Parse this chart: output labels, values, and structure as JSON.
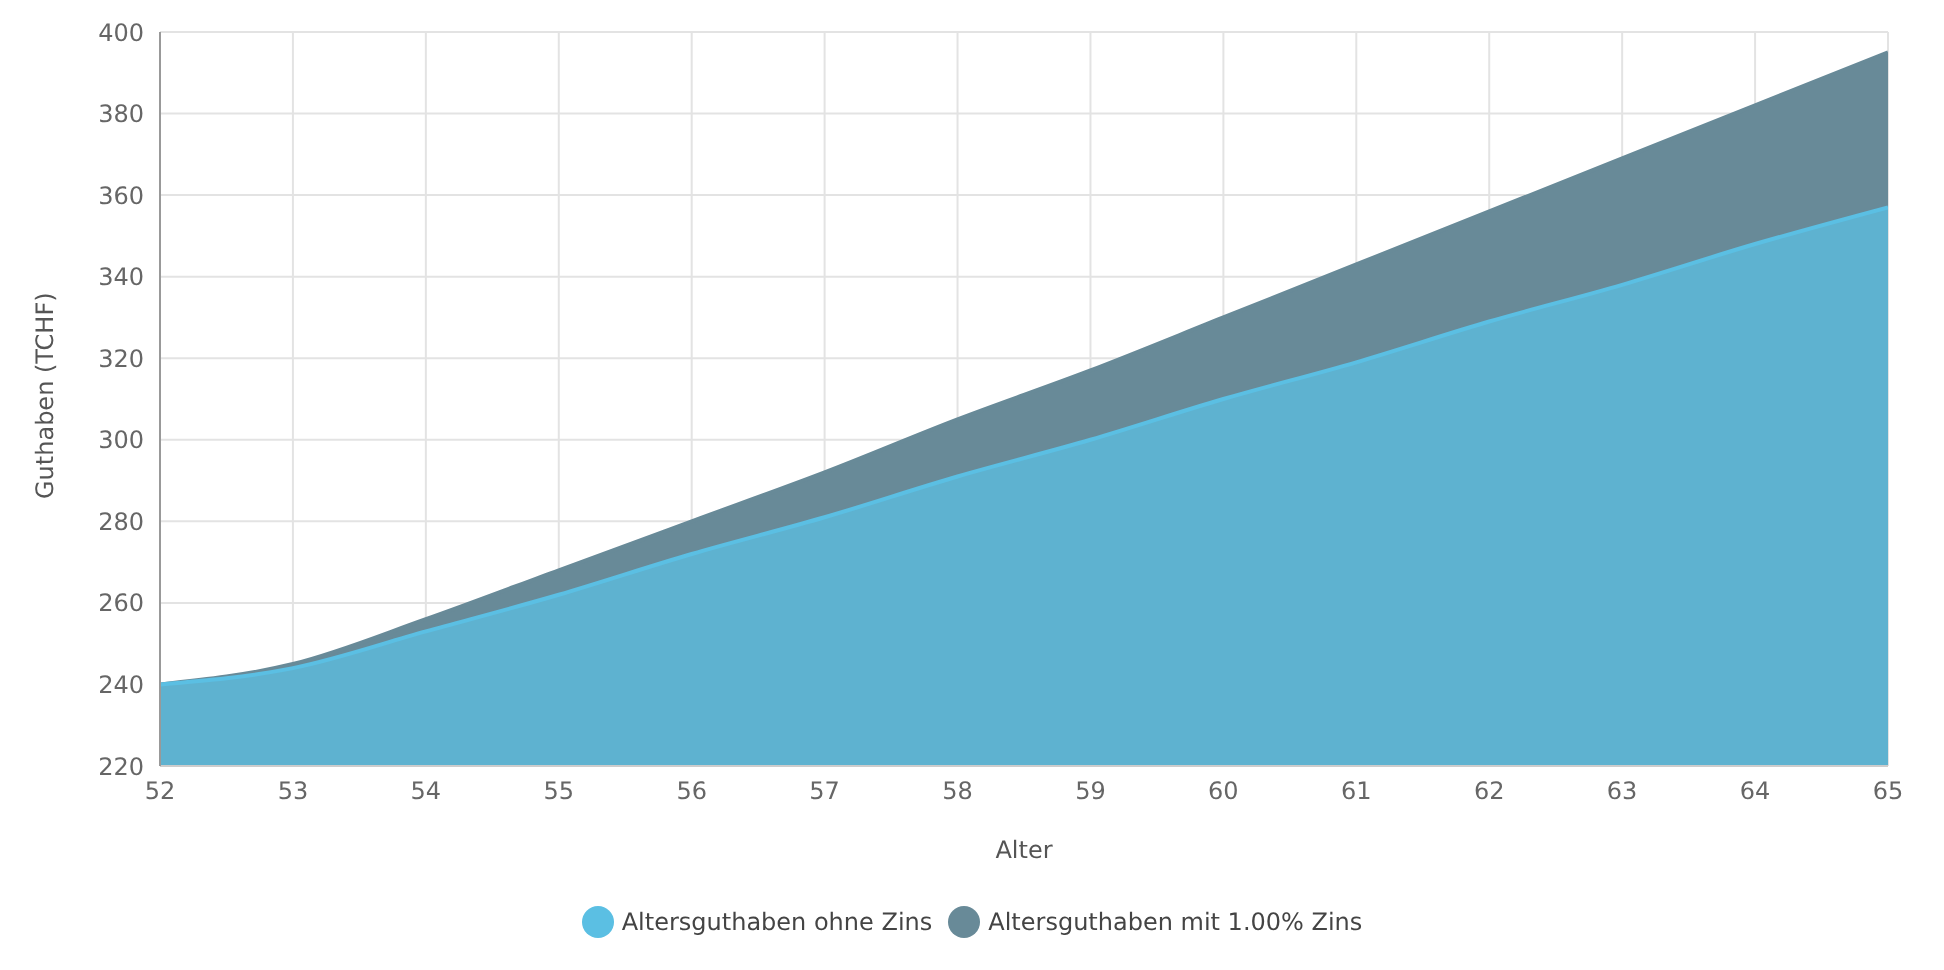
{
  "chart_data": {
    "type": "area",
    "xlabel": "Alter",
    "ylabel": "Guthaben (TCHF)",
    "x": [
      52,
      53,
      54,
      55,
      56,
      57,
      58,
      59,
      60,
      61,
      62,
      63,
      64,
      65
    ],
    "series": [
      {
        "name": "Altersguthaben ohne Zins",
        "color": "#5bbfe3",
        "values": [
          240,
          244,
          253,
          262,
          272,
          281,
          291,
          300,
          310,
          319,
          329,
          338,
          348,
          357
        ]
      },
      {
        "name": "Altersguthaben mit 1.00% Zins",
        "color": "#688a98",
        "values": [
          240,
          245,
          256,
          268,
          280,
          292,
          305,
          317,
          330,
          343,
          356,
          369,
          382,
          395
        ]
      }
    ],
    "xlim": [
      52,
      65
    ],
    "xticks": [
      52,
      53,
      54,
      55,
      56,
      57,
      58,
      59,
      60,
      61,
      62,
      63,
      64,
      65
    ],
    "ylim": [
      220,
      400
    ],
    "yticks": [
      220,
      240,
      260,
      280,
      300,
      320,
      340,
      360,
      380,
      400
    ],
    "grid": true,
    "legend": "bottom"
  }
}
